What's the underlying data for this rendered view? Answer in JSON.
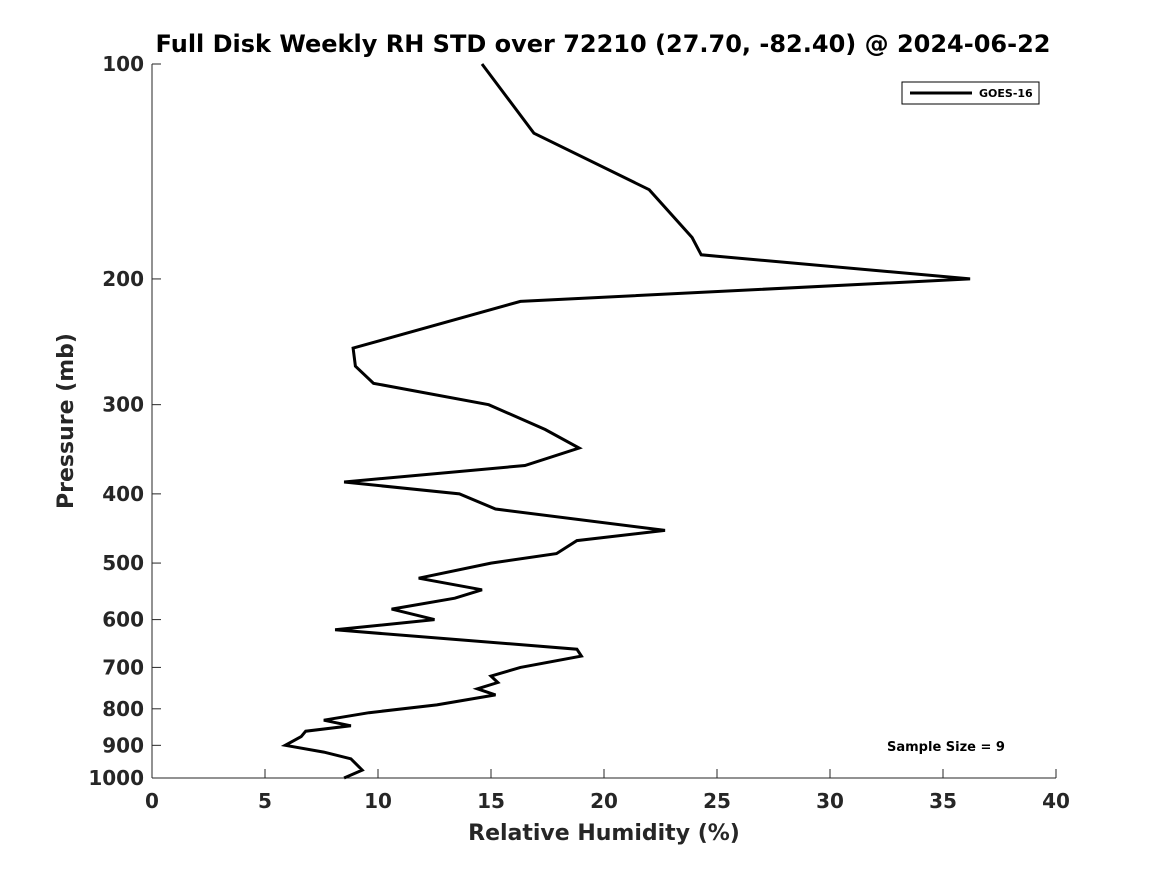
{
  "chart_data": {
    "type": "line",
    "title": "Full Disk Weekly RH STD over 72210 (27.70, -82.40) @ 2024-06-22",
    "xlabel": "Relative Humidity (%)",
    "ylabel": "Pressure (mb)",
    "xlim": [
      0,
      40
    ],
    "ylim": [
      100,
      1000
    ],
    "y_scale": "log",
    "y_reversed": true,
    "grid": false,
    "legend_position": "top-right",
    "x_ticks": [
      0,
      5,
      10,
      15,
      20,
      25,
      30,
      35,
      40
    ],
    "y_ticks": [
      100,
      200,
      300,
      400,
      500,
      600,
      700,
      800,
      900,
      1000
    ],
    "annotation": "Sample Size = 9",
    "series": [
      {
        "name": "GOES-16",
        "color": "#000000",
        "points": [
          [
            14.6,
            100
          ],
          [
            16.9,
            125
          ],
          [
            22.0,
            150
          ],
          [
            23.9,
            175
          ],
          [
            24.3,
            185
          ],
          [
            36.2,
            200
          ],
          [
            16.3,
            215
          ],
          [
            8.9,
            250
          ],
          [
            9.0,
            265
          ],
          [
            9.8,
            280
          ],
          [
            14.9,
            300
          ],
          [
            17.4,
            325
          ],
          [
            18.9,
            345
          ],
          [
            16.5,
            365
          ],
          [
            8.5,
            385
          ],
          [
            13.6,
            400
          ],
          [
            15.2,
            420
          ],
          [
            22.7,
            450
          ],
          [
            18.8,
            465
          ],
          [
            17.9,
            485
          ],
          [
            15.0,
            500
          ],
          [
            11.8,
            525
          ],
          [
            14.6,
            545
          ],
          [
            13.4,
            560
          ],
          [
            10.6,
            580
          ],
          [
            12.5,
            600
          ],
          [
            8.1,
            620
          ],
          [
            18.8,
            660
          ],
          [
            19.0,
            675
          ],
          [
            16.3,
            700
          ],
          [
            15.0,
            720
          ],
          [
            15.3,
            735
          ],
          [
            14.4,
            750
          ],
          [
            15.2,
            765
          ],
          [
            12.6,
            790
          ],
          [
            9.6,
            810
          ],
          [
            7.6,
            830
          ],
          [
            8.8,
            845
          ],
          [
            6.8,
            860
          ],
          [
            6.6,
            875
          ],
          [
            5.9,
            900
          ],
          [
            7.6,
            920
          ],
          [
            8.8,
            940
          ],
          [
            9.3,
            975
          ],
          [
            8.5,
            1000
          ]
        ]
      }
    ]
  }
}
